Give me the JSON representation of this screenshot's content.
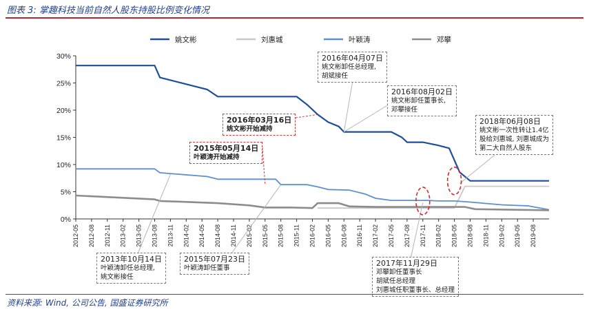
{
  "header": {
    "title": "图表 3: 掌趣科技当前自然人股东持股比例变化情况"
  },
  "footer": {
    "source": "资料来源: Wind, 公司公告, 国盛证券研究所"
  },
  "colors": {
    "brand_red": "#b3262e",
    "brand_blue": "#1f3f8f"
  },
  "chart_data": {
    "type": "line",
    "title": "",
    "xlabel": "",
    "ylabel": "",
    "ylim": [
      0,
      30
    ],
    "yticks": [
      "0%",
      "5%",
      "10%",
      "15%",
      "20%",
      "25%",
      "30%"
    ],
    "grid": false,
    "legend_position": "top",
    "categories": [
      "2012-05",
      "2012-08",
      "2012-11",
      "2013-02",
      "2013-05",
      "2013-08",
      "2013-11",
      "2014-02",
      "2014-05",
      "2014-08",
      "2014-11",
      "2015-02",
      "2015-05",
      "2015-08",
      "2015-11",
      "2016-02",
      "2016-05",
      "2016-08",
      "2016-11",
      "2017-02",
      "2017-05",
      "2017-08",
      "2017-11",
      "2018-02",
      "2018-05",
      "2018-08",
      "2018-11",
      "2019-02",
      "2019-05",
      "2019-08"
    ],
    "x_range": [
      "2012-05",
      "2019-11"
    ],
    "series": [
      {
        "name": "姚文彬",
        "color": "#1d4e9a",
        "width": 2.2,
        "dash": "",
        "points": [
          [
            "2012-05",
            28.2
          ],
          [
            "2013-08",
            28.2
          ],
          [
            "2013-09",
            26.0
          ],
          [
            "2014-06",
            23.8
          ],
          [
            "2014-08",
            22.5
          ],
          [
            "2015-11",
            22.5
          ],
          [
            "2016-01",
            21.0
          ],
          [
            "2016-03",
            19.2
          ],
          [
            "2016-05",
            17.8
          ],
          [
            "2016-07",
            17.0
          ],
          [
            "2016-08",
            16.0
          ],
          [
            "2017-05",
            16.0
          ],
          [
            "2017-07",
            15.0
          ],
          [
            "2017-08",
            14.1
          ],
          [
            "2017-09",
            14.1
          ],
          [
            "2017-11",
            14.1
          ],
          [
            "2018-02",
            13.5
          ],
          [
            "2018-04",
            13.0
          ],
          [
            "2018-06",
            8.6
          ],
          [
            "2018-08",
            7.0
          ],
          [
            "2019-11",
            7.0
          ]
        ]
      },
      {
        "name": "刘惠城",
        "color": "#c8c8c8",
        "width": 1.8,
        "dash": "",
        "points": [
          [
            "2016-03",
            2.0
          ],
          [
            "2016-05",
            2.0
          ],
          [
            "2016-07",
            2.0
          ],
          [
            "2016-08",
            2.0
          ],
          [
            "2018-05",
            2.0
          ],
          [
            "2018-07",
            6.0
          ],
          [
            "2018-08",
            6.0
          ],
          [
            "2019-11",
            6.0
          ]
        ]
      },
      {
        "name": "叶颖涛",
        "color": "#5a8fd0",
        "width": 1.8,
        "dash": "",
        "points": [
          [
            "2012-05",
            9.2
          ],
          [
            "2013-08",
            9.2
          ],
          [
            "2013-09",
            8.5
          ],
          [
            "2014-06",
            7.8
          ],
          [
            "2014-08",
            7.3
          ],
          [
            "2015-07",
            7.3
          ],
          [
            "2015-08",
            6.3
          ],
          [
            "2016-01",
            6.3
          ],
          [
            "2016-03",
            5.9
          ],
          [
            "2016-05",
            5.4
          ],
          [
            "2016-09",
            5.3
          ],
          [
            "2016-12",
            4.6
          ],
          [
            "2017-02",
            3.8
          ],
          [
            "2017-05",
            3.4
          ],
          [
            "2017-12",
            3.4
          ],
          [
            "2018-02",
            3.3
          ],
          [
            "2018-05",
            3.3
          ],
          [
            "2018-08",
            3.1
          ],
          [
            "2019-02",
            2.6
          ],
          [
            "2019-07",
            2.4
          ],
          [
            "2019-11",
            1.7
          ]
        ]
      },
      {
        "name": "邓攀",
        "color": "#8c8c8c",
        "width": 2.6,
        "dash": "",
        "points": [
          [
            "2012-05",
            4.3
          ],
          [
            "2013-08",
            3.6
          ],
          [
            "2013-09",
            3.3
          ],
          [
            "2014-08",
            2.9
          ],
          [
            "2015-02",
            2.5
          ],
          [
            "2015-05",
            2.1
          ],
          [
            "2015-10",
            2.1
          ],
          [
            "2016-02",
            2.0
          ],
          [
            "2016-03",
            2.9
          ],
          [
            "2016-05",
            2.9
          ],
          [
            "2016-07",
            2.9
          ],
          [
            "2016-09",
            2.3
          ],
          [
            "2017-02",
            2.2
          ],
          [
            "2017-06",
            2.2
          ],
          [
            "2017-12",
            2.2
          ],
          [
            "2018-02",
            2.2
          ],
          [
            "2018-05",
            2.2
          ],
          [
            "2018-07",
            2.2
          ],
          [
            "2018-09",
            1.8
          ],
          [
            "2019-11",
            1.6
          ]
        ]
      }
    ],
    "annotations": [
      {
        "id": "a1",
        "date": "2016年04月07日",
        "lines": [
          "姚文彬卸任总经理,",
          "胡斌接任"
        ],
        "style": "gray",
        "target": [
          "2016-08",
          16.0
        ]
      },
      {
        "id": "a2",
        "date": "2016年08月02日",
        "lines": [
          "姚文彬卸任董事长,",
          "邓攀接任"
        ],
        "style": "gray",
        "target": [
          "2016-08",
          16.0
        ]
      },
      {
        "id": "a3",
        "date": "2018年06月08日",
        "lines": [
          "姚文彬一次性转让1.4亿",
          "股给刘惠城, 刘惠城成为",
          "第二大自然人股东"
        ],
        "style": "gray",
        "target": [
          "2018-06",
          6.5
        ]
      },
      {
        "id": "a4",
        "date": "2016年03月16日",
        "lines": [
          "姚文彬开始减持"
        ],
        "style": "red",
        "target": [
          "2016-03",
          19.2
        ]
      },
      {
        "id": "a5",
        "date": "2015年05月14日",
        "lines": [
          "叶颖涛开始减持"
        ],
        "style": "red",
        "target": [
          "2015-05",
          6.3
        ]
      },
      {
        "id": "a6",
        "date": "2013年10月14日",
        "lines": [
          "叶颖涛卸任总经理,",
          "姚文彬接任"
        ],
        "style": "gray",
        "target": [
          "2013-11",
          8.2
        ]
      },
      {
        "id": "a7",
        "date": "2015年07月23日",
        "lines": [
          "叶颖涛卸任董事"
        ],
        "style": "gray",
        "target": [
          "2015-08",
          6.3
        ]
      },
      {
        "id": "a8",
        "date": "2017年11月29日",
        "lines": [
          "邓攀卸任董事长",
          "胡斌任总经理",
          "刘惠城任职董事长、总经理"
        ],
        "style": "gray",
        "target": [
          "2017-11",
          3.0
        ]
      }
    ],
    "highlight_circles": [
      {
        "at": [
          "2017-11",
          3.3
        ]
      },
      {
        "at": [
          "2018-05",
          7.0
        ]
      }
    ]
  }
}
